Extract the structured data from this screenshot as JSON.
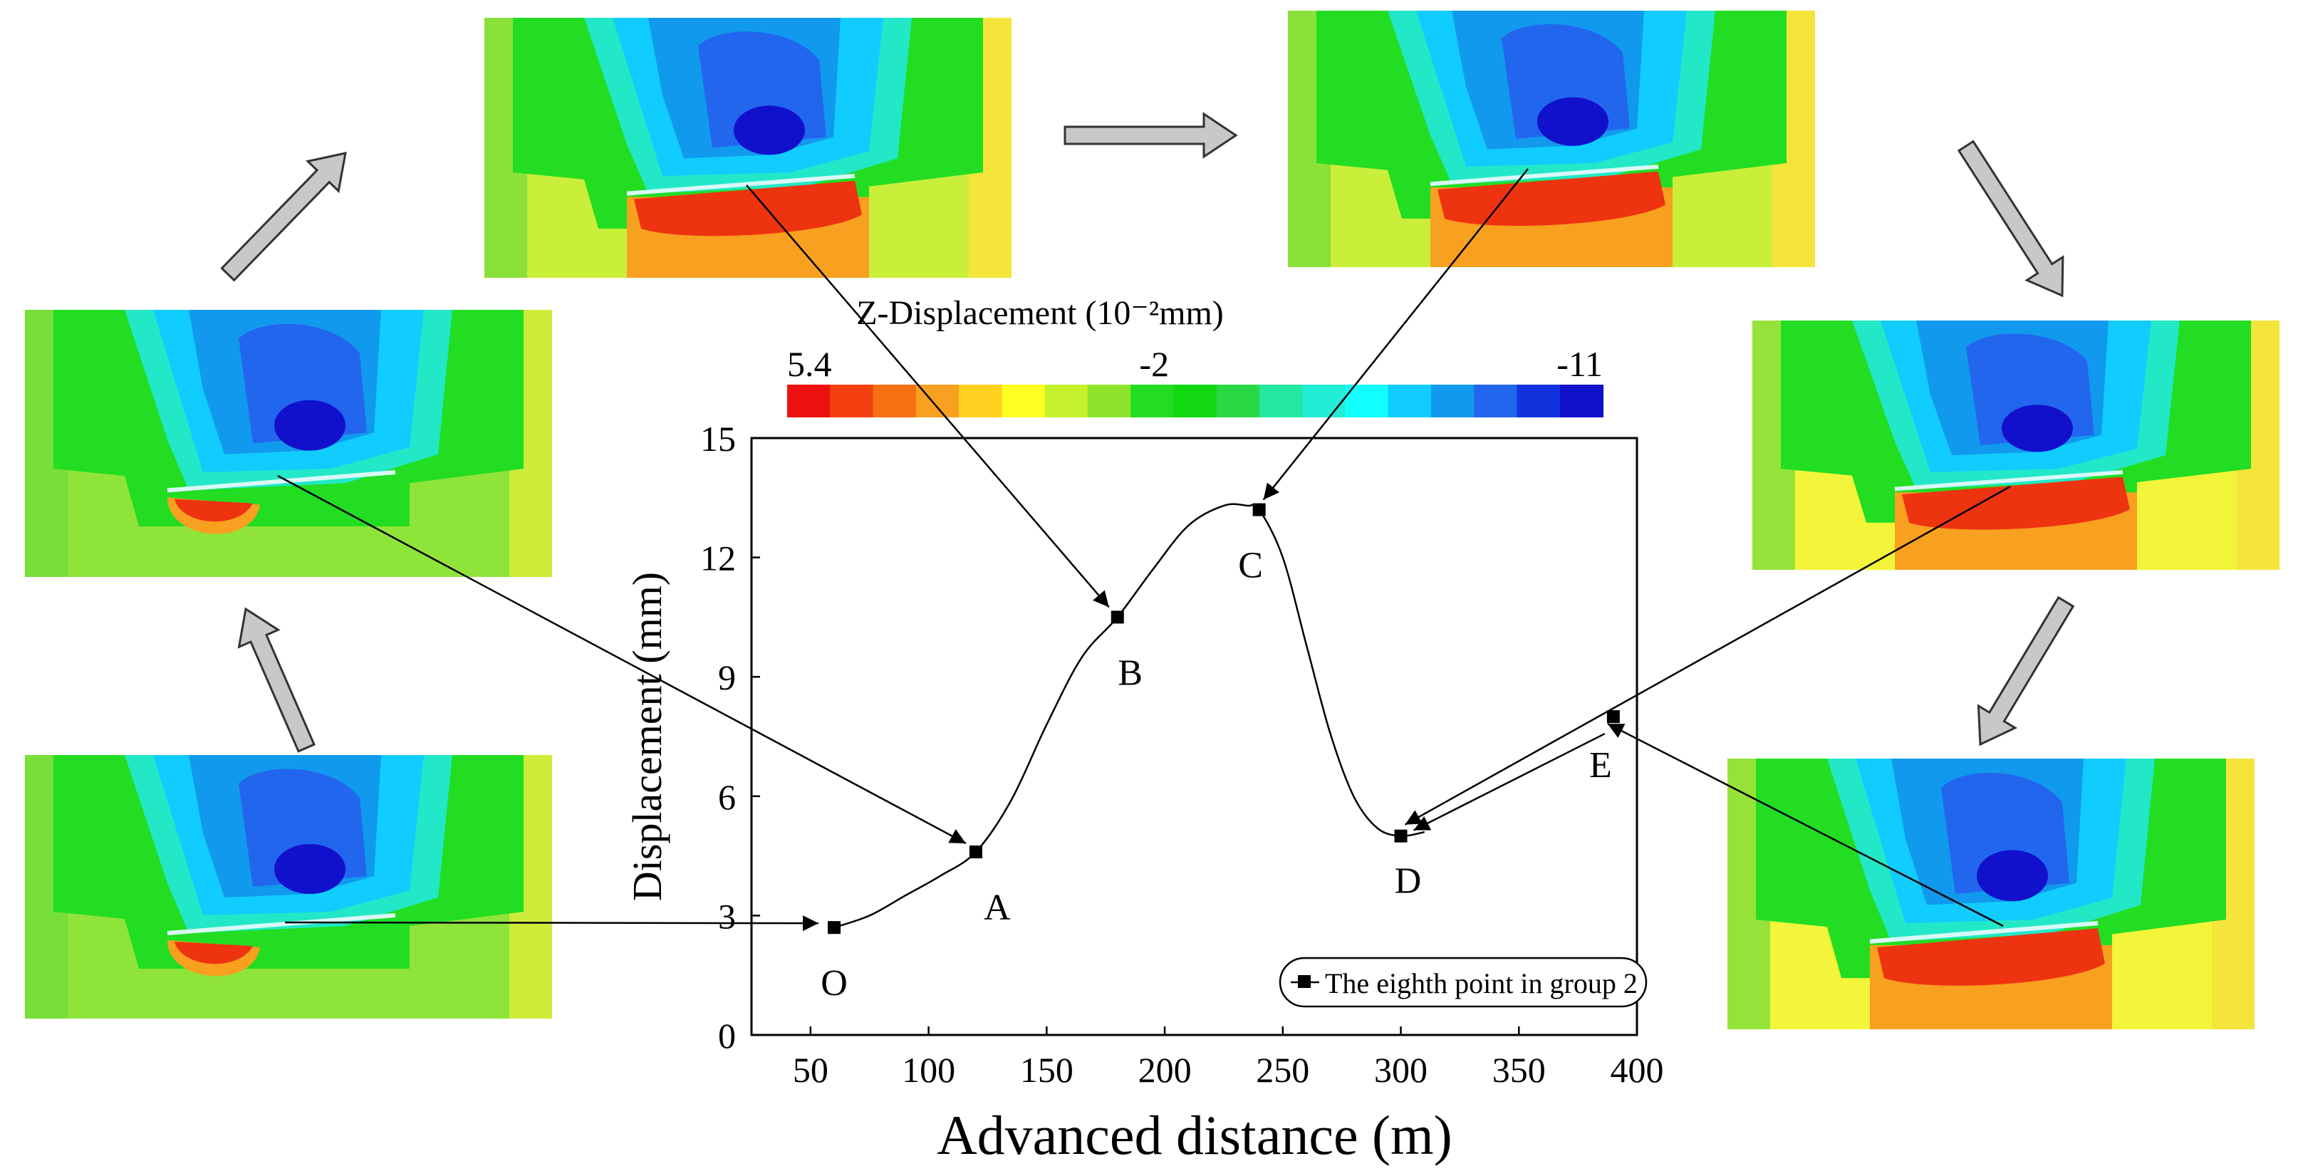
{
  "chart_data": {
    "type": "line",
    "title": "",
    "xlabel": "Advanced distance (m)",
    "ylabel": "Displacement (mm)",
    "xlim": [
      25,
      400
    ],
    "ylim": [
      0,
      15
    ],
    "xticks": [
      50,
      100,
      150,
      200,
      250,
      300,
      350,
      400
    ],
    "yticks": [
      0,
      3,
      6,
      9,
      12,
      15
    ],
    "grid": false,
    "legend": {
      "position": "bottom-right",
      "entries": [
        "The eighth point in group 2"
      ]
    },
    "series": [
      {
        "name": "The eighth point in group 2",
        "points": [
          {
            "label": "O",
            "x": 60,
            "y": 2.7
          },
          {
            "label": "A",
            "x": 120,
            "y": 4.6
          },
          {
            "label": "B",
            "x": 180,
            "y": 10.5
          },
          {
            "label": "C",
            "x": 240,
            "y": 13.2
          },
          {
            "label": "D",
            "x": 300,
            "y": 5.0
          },
          {
            "label": "E",
            "x": 390,
            "y": 8.0
          }
        ]
      }
    ],
    "curve_path": [
      [
        60,
        2.7
      ],
      [
        75,
        3.0
      ],
      [
        90,
        3.5
      ],
      [
        105,
        4.0
      ],
      [
        120,
        4.6
      ],
      [
        135,
        5.9
      ],
      [
        150,
        7.8
      ],
      [
        165,
        9.5
      ],
      [
        180,
        10.5
      ],
      [
        195,
        11.7
      ],
      [
        210,
        12.8
      ],
      [
        225,
        13.3
      ],
      [
        235,
        13.3
      ],
      [
        240,
        13.2
      ],
      [
        250,
        12.0
      ],
      [
        260,
        9.8
      ],
      [
        270,
        7.6
      ],
      [
        280,
        6.0
      ],
      [
        290,
        5.2
      ],
      [
        300,
        5.0
      ],
      [
        310,
        5.1
      ]
    ],
    "colorbar": {
      "title": "Z-Displacement (10⁻²mm)",
      "labels": [
        {
          "text": "5.4",
          "pos": 0.0
        },
        {
          "text": "-2",
          "pos": 0.45
        },
        {
          "text": "-11",
          "pos": 1.0
        }
      ],
      "colors": [
        "#ee1111",
        "#f44010",
        "#f77012",
        "#f8a020",
        "#ffd020",
        "#ffff22",
        "#c6f22d",
        "#8ee42c",
        "#22dd22",
        "#11d811",
        "#2ad846",
        "#22e8a0",
        "#22eed6",
        "#11ffff",
        "#11ccff",
        "#1199ee",
        "#2266ee",
        "#1133dd",
        "#1111cc"
      ]
    },
    "annotations": [
      {
        "from_panel": "panel-o",
        "to_point": "O"
      },
      {
        "from_panel": "panel-a",
        "to_point": "A"
      },
      {
        "from_panel": "panel-b",
        "to_point": "B"
      },
      {
        "from_panel": "panel-c",
        "to_point": "C"
      },
      {
        "from_panel": "panel-d",
        "to_point": "D"
      },
      {
        "from_panel": "panel-e",
        "to_point": "E"
      }
    ],
    "panels": [
      {
        "id": "panel-a",
        "variant": "left",
        "point": "A"
      },
      {
        "id": "panel-b",
        "variant": "top",
        "point": "B"
      },
      {
        "id": "panel-c",
        "variant": "top",
        "point": "C"
      },
      {
        "id": "panel-d",
        "variant": "right",
        "point": "D"
      },
      {
        "id": "panel-e",
        "variant": "right",
        "point": "E"
      },
      {
        "id": "panel-o",
        "variant": "left",
        "point": "O"
      }
    ]
  }
}
